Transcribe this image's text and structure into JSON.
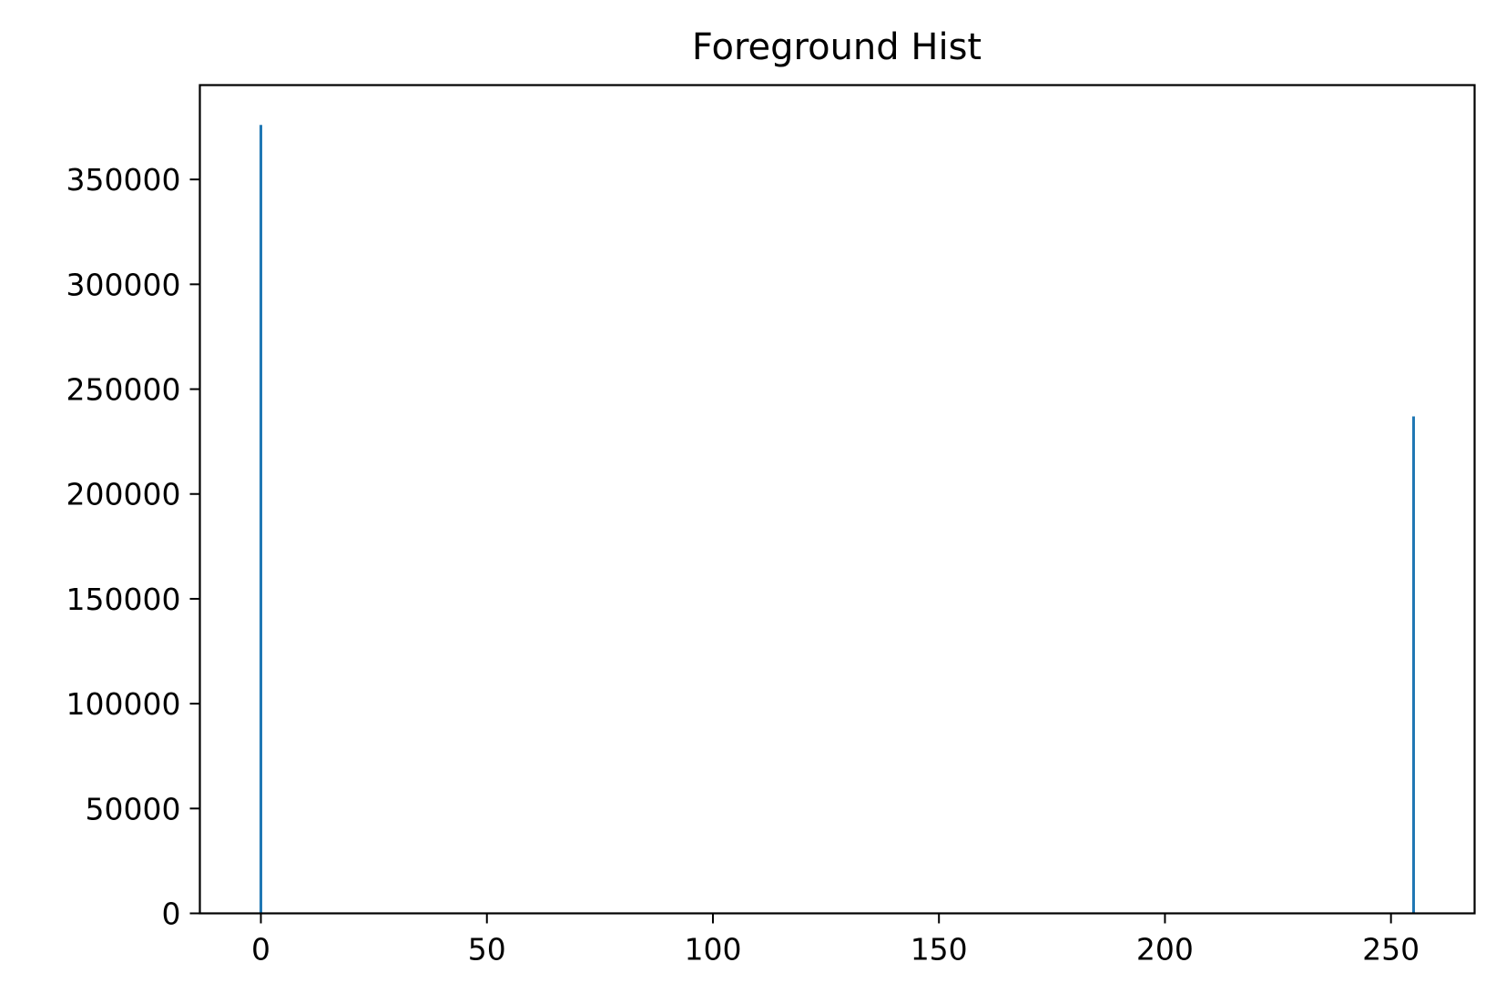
{
  "chart_data": {
    "type": "bar",
    "title": "Foreground Hist",
    "xlabel": "",
    "ylabel": "",
    "xlim": [
      -13.5,
      268.5
    ],
    "ylim": [
      0,
      395000
    ],
    "x_ticks": [
      0,
      50,
      100,
      150,
      200,
      250
    ],
    "y_ticks": [
      0,
      50000,
      100000,
      150000,
      200000,
      250000,
      300000,
      350000
    ],
    "grid": false,
    "legend": "none",
    "series": [
      {
        "color": "#1f77b4",
        "bins": [
          {
            "x": 0,
            "value": 376000
          },
          {
            "x": 255,
            "value": 237000
          }
        ]
      }
    ]
  }
}
